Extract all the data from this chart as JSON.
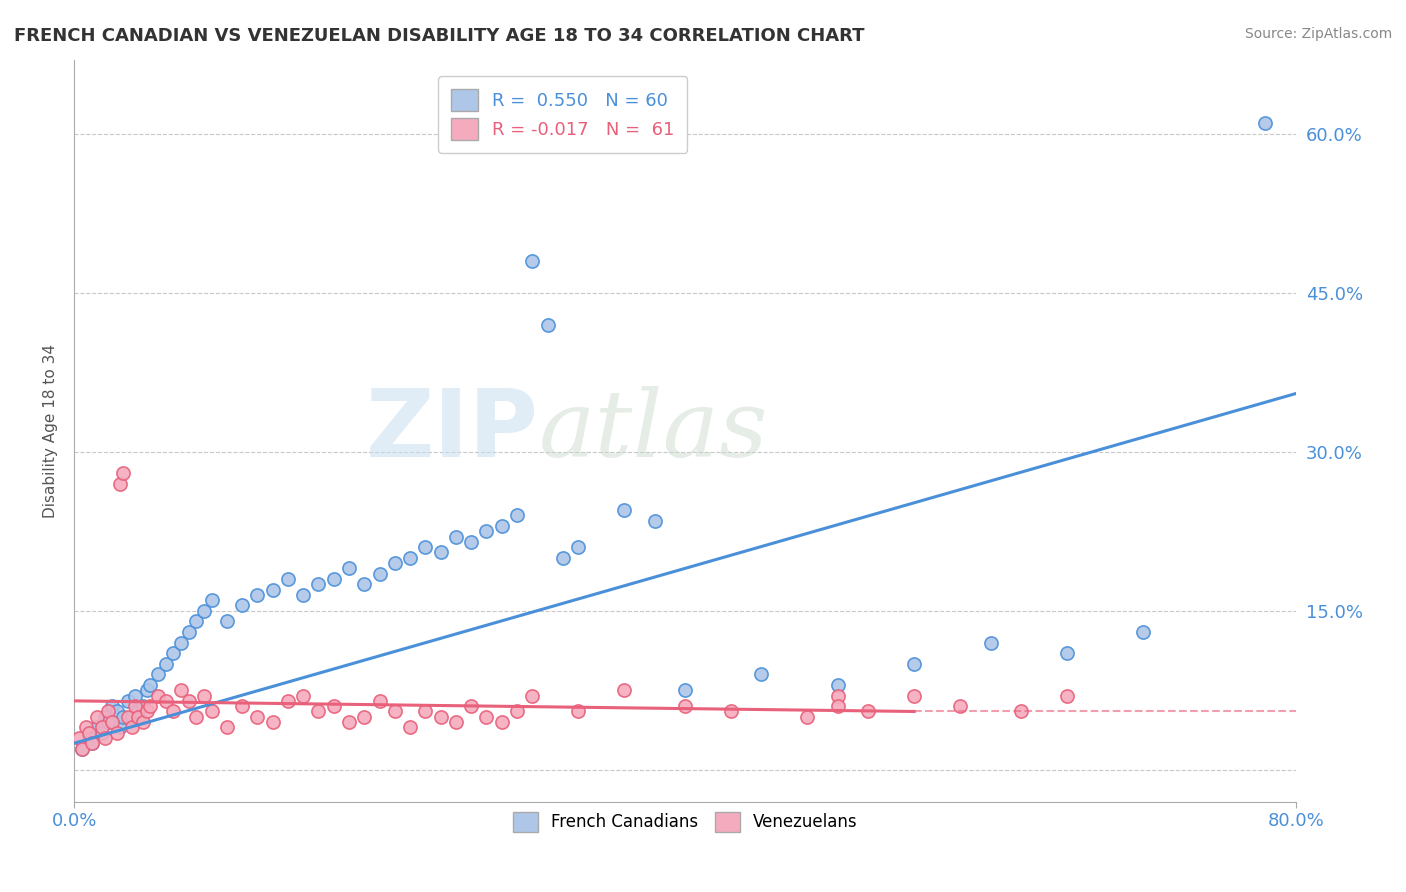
{
  "title": "FRENCH CANADIAN VS VENEZUELAN DISABILITY AGE 18 TO 34 CORRELATION CHART",
  "source": "Source: ZipAtlas.com",
  "ylabel": "Disability Age 18 to 34",
  "xmin": 0.0,
  "xmax": 80.0,
  "ymin": -3.0,
  "ymax": 67.0,
  "yticks": [
    0.0,
    15.0,
    30.0,
    45.0,
    60.0
  ],
  "ytick_labels": [
    "",
    "15.0%",
    "30.0%",
    "45.0%",
    "60.0%"
  ],
  "french_R": 0.55,
  "french_N": 60,
  "venezuelan_R": -0.017,
  "venezuelan_N": 61,
  "french_color": "#aec6e8",
  "venezuelan_color": "#f5abbe",
  "french_line_color": "#4a90d9",
  "venezuelan_line_color": "#e8607a",
  "watermark_zip": "ZIP",
  "watermark_atlas": "atlas",
  "background_color": "#ffffff",
  "grid_color": "#c8c8c8",
  "french_x": [
    0.5,
    1.0,
    1.2,
    1.5,
    1.8,
    2.0,
    2.2,
    2.5,
    2.8,
    3.0,
    3.2,
    3.5,
    3.8,
    4.0,
    4.2,
    4.5,
    4.8,
    5.0,
    5.5,
    6.0,
    6.5,
    7.0,
    7.5,
    8.0,
    8.5,
    9.0,
    10.0,
    11.0,
    12.0,
    13.0,
    14.0,
    15.0,
    16.0,
    17.0,
    18.0,
    19.0,
    20.0,
    21.0,
    22.0,
    23.0,
    24.0,
    25.0,
    26.0,
    27.0,
    28.0,
    29.0,
    30.0,
    31.0,
    32.0,
    33.0,
    36.0,
    38.0,
    40.0,
    45.0,
    50.0,
    55.0,
    60.0,
    65.0,
    70.0,
    78.0
  ],
  "french_y": [
    2.0,
    3.0,
    2.5,
    4.0,
    3.5,
    5.0,
    4.5,
    6.0,
    5.5,
    4.0,
    5.0,
    6.5,
    5.0,
    7.0,
    5.5,
    6.0,
    7.5,
    8.0,
    9.0,
    10.0,
    11.0,
    12.0,
    13.0,
    14.0,
    15.0,
    16.0,
    14.0,
    15.5,
    16.5,
    17.0,
    18.0,
    16.5,
    17.5,
    18.0,
    19.0,
    17.5,
    18.5,
    19.5,
    20.0,
    21.0,
    20.5,
    22.0,
    21.5,
    22.5,
    23.0,
    24.0,
    48.0,
    42.0,
    20.0,
    21.0,
    24.5,
    23.5,
    7.5,
    9.0,
    8.0,
    10.0,
    12.0,
    11.0,
    13.0,
    61.0
  ],
  "venezuelan_x": [
    0.3,
    0.5,
    0.8,
    1.0,
    1.2,
    1.5,
    1.8,
    2.0,
    2.2,
    2.5,
    2.8,
    3.0,
    3.2,
    3.5,
    3.8,
    4.0,
    4.2,
    4.5,
    4.8,
    5.0,
    5.5,
    6.0,
    6.5,
    7.0,
    7.5,
    8.0,
    8.5,
    9.0,
    10.0,
    11.0,
    12.0,
    13.0,
    14.0,
    15.0,
    16.0,
    17.0,
    18.0,
    19.0,
    20.0,
    21.0,
    22.0,
    23.0,
    24.0,
    25.0,
    26.0,
    27.0,
    28.0,
    29.0,
    30.0,
    33.0,
    36.0,
    40.0,
    43.0,
    48.0,
    50.0,
    50.0,
    52.0,
    55.0,
    58.0,
    62.0,
    65.0
  ],
  "venezuelan_y": [
    3.0,
    2.0,
    4.0,
    3.5,
    2.5,
    5.0,
    4.0,
    3.0,
    5.5,
    4.5,
    3.5,
    27.0,
    28.0,
    5.0,
    4.0,
    6.0,
    5.0,
    4.5,
    5.5,
    6.0,
    7.0,
    6.5,
    5.5,
    7.5,
    6.5,
    5.0,
    7.0,
    5.5,
    4.0,
    6.0,
    5.0,
    4.5,
    6.5,
    7.0,
    5.5,
    6.0,
    4.5,
    5.0,
    6.5,
    5.5,
    4.0,
    5.5,
    5.0,
    4.5,
    6.0,
    5.0,
    4.5,
    5.5,
    7.0,
    5.5,
    7.5,
    6.0,
    5.5,
    5.0,
    7.0,
    6.0,
    5.5,
    7.0,
    6.0,
    5.5,
    7.0
  ],
  "french_line_x": [
    0.0,
    80.0
  ],
  "french_line_y": [
    2.5,
    35.5
  ],
  "venezuelan_line_x": [
    0.0,
    55.0
  ],
  "venezuelan_line_y": [
    6.5,
    5.5
  ]
}
